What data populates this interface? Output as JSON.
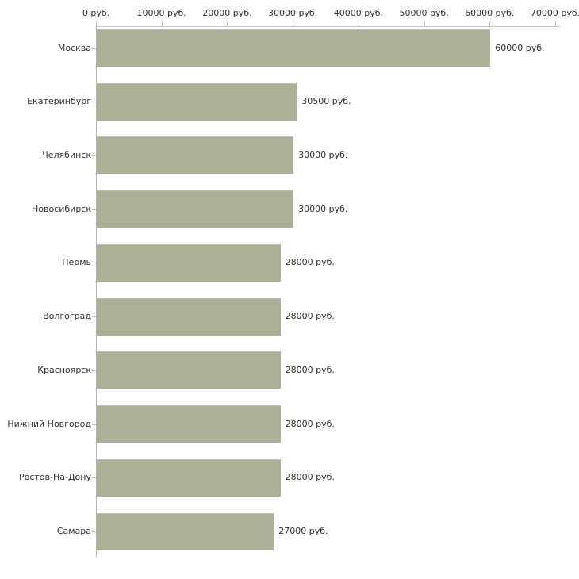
{
  "chart_data": {
    "type": "bar",
    "orientation": "horizontal",
    "title": "",
    "xlabel": "",
    "ylabel": "",
    "xlim": [
      0,
      70000
    ],
    "grid": false,
    "legend": false,
    "axis_position": "top",
    "categories": [
      "Москва",
      "Екатеринбург",
      "Челябинск",
      "Новосибирск",
      "Пермь",
      "Волгоград",
      "Красноярск",
      "Нижний Новгород",
      "Ростов-На-Дону",
      "Самара"
    ],
    "values": [
      60000,
      30500,
      30000,
      30000,
      28000,
      28000,
      28000,
      28000,
      28000,
      27000
    ],
    "value_labels": [
      "60000 руб.",
      "30500 руб.",
      "30000 руб.",
      "30000 руб.",
      "28000 руб.",
      "28000 руб.",
      "28000 руб.",
      "28000 руб.",
      "28000 руб.",
      "27000 руб."
    ],
    "x_ticks": [
      0,
      10000,
      20000,
      30000,
      40000,
      50000,
      60000,
      70000
    ],
    "x_tick_labels": [
      "0 руб.",
      "10000 руб.",
      "20000 руб.",
      "30000 руб.",
      "40000 руб.",
      "50000 руб.",
      "60000 руб.",
      "70000 руб."
    ],
    "colors": {
      "bar": "#abb096",
      "bar_border": "#bcc0a8",
      "axis_h": "#c6c6c6",
      "axis_v": "#b3b3b3",
      "tick": "#bdc09e",
      "text": "#2f2f2f"
    }
  }
}
